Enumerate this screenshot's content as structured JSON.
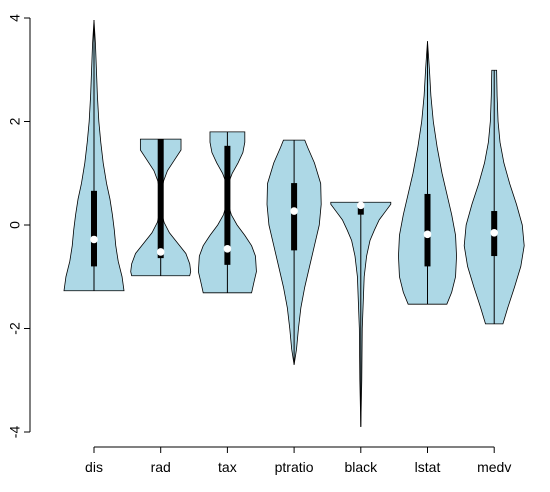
{
  "chart_data": {
    "type": "violin",
    "title": "",
    "xlabel": "",
    "ylabel": "",
    "ylim": [
      -4.2,
      4.2
    ],
    "yticks": [
      -4,
      -2,
      0,
      2,
      4
    ],
    "ytick_labels": [
      "-4",
      "-2",
      "0",
      "2",
      "4"
    ],
    "fill_color": "#add8e6",
    "categories": [
      "dis",
      "rad",
      "tax",
      "ptratio",
      "black",
      "lstat",
      "medv"
    ],
    "violins": [
      {
        "name": "dis",
        "min": -1.27,
        "max": 3.96,
        "q1": -0.8,
        "q3": 0.66,
        "median": -0.28,
        "density": [
          [
            -1.27,
            0.62
          ],
          [
            -1.0,
            0.58
          ],
          [
            -0.7,
            0.5
          ],
          [
            -0.4,
            0.45
          ],
          [
            -0.1,
            0.42
          ],
          [
            0.2,
            0.38
          ],
          [
            0.5,
            0.33
          ],
          [
            0.8,
            0.26
          ],
          [
            1.2,
            0.19
          ],
          [
            1.6,
            0.14
          ],
          [
            2.0,
            0.1
          ],
          [
            2.5,
            0.07
          ],
          [
            3.0,
            0.05
          ],
          [
            3.5,
            0.03
          ],
          [
            3.96,
            0.0
          ]
        ]
      },
      {
        "name": "rad",
        "min": -0.98,
        "max": 1.66,
        "q1": -0.64,
        "q3": 1.66,
        "median": -0.52,
        "density": [
          [
            -0.98,
            0.6
          ],
          [
            -0.9,
            0.62
          ],
          [
            -0.75,
            0.6
          ],
          [
            -0.55,
            0.52
          ],
          [
            -0.35,
            0.35
          ],
          [
            -0.15,
            0.18
          ],
          [
            0.05,
            0.07
          ],
          [
            0.25,
            0.02
          ],
          [
            0.45,
            0.01
          ],
          [
            0.65,
            0.02
          ],
          [
            0.85,
            0.06
          ],
          [
            1.05,
            0.14
          ],
          [
            1.25,
            0.28
          ],
          [
            1.45,
            0.42
          ],
          [
            1.66,
            0.42
          ]
        ]
      },
      {
        "name": "tax",
        "min": -1.31,
        "max": 1.8,
        "q1": -0.77,
        "q3": 1.53,
        "median": -0.46,
        "density": [
          [
            -1.31,
            0.5
          ],
          [
            -1.1,
            0.55
          ],
          [
            -0.9,
            0.6
          ],
          [
            -0.6,
            0.58
          ],
          [
            -0.4,
            0.5
          ],
          [
            -0.2,
            0.36
          ],
          [
            0.0,
            0.2
          ],
          [
            0.2,
            0.08
          ],
          [
            0.4,
            0.02
          ],
          [
            0.6,
            0.01
          ],
          [
            0.8,
            0.02
          ],
          [
            1.0,
            0.1
          ],
          [
            1.2,
            0.22
          ],
          [
            1.4,
            0.32
          ],
          [
            1.6,
            0.36
          ],
          [
            1.8,
            0.36
          ]
        ]
      },
      {
        "name": "ptratio",
        "min": -2.7,
        "max": 1.64,
        "q1": -0.49,
        "q3": 0.81,
        "median": 0.27,
        "density": [
          [
            -2.7,
            0.0
          ],
          [
            -2.4,
            0.05
          ],
          [
            -2.0,
            0.09
          ],
          [
            -1.6,
            0.14
          ],
          [
            -1.2,
            0.22
          ],
          [
            -0.8,
            0.32
          ],
          [
            -0.4,
            0.42
          ],
          [
            0.0,
            0.52
          ],
          [
            0.4,
            0.56
          ],
          [
            0.8,
            0.55
          ],
          [
            1.2,
            0.42
          ],
          [
            1.5,
            0.28
          ],
          [
            1.64,
            0.22
          ]
        ]
      },
      {
        "name": "black",
        "min": -3.9,
        "max": 0.44,
        "q1": 0.2,
        "q3": 0.44,
        "median": 0.38,
        "density": [
          [
            -3.9,
            0.0
          ],
          [
            -3.0,
            0.02
          ],
          [
            -2.0,
            0.03
          ],
          [
            -1.0,
            0.07
          ],
          [
            -0.6,
            0.12
          ],
          [
            -0.3,
            0.19
          ],
          [
            -0.1,
            0.28
          ],
          [
            0.1,
            0.38
          ],
          [
            0.25,
            0.5
          ],
          [
            0.4,
            0.62
          ],
          [
            0.44,
            0.62
          ]
        ]
      },
      {
        "name": "lstat",
        "min": -1.53,
        "max": 3.55,
        "q1": -0.8,
        "q3": 0.6,
        "median": -0.18,
        "density": [
          [
            -1.53,
            0.4
          ],
          [
            -1.3,
            0.5
          ],
          [
            -1.0,
            0.58
          ],
          [
            -0.6,
            0.6
          ],
          [
            -0.2,
            0.58
          ],
          [
            0.2,
            0.5
          ],
          [
            0.6,
            0.4
          ],
          [
            1.0,
            0.3
          ],
          [
            1.5,
            0.2
          ],
          [
            2.0,
            0.12
          ],
          [
            2.5,
            0.07
          ],
          [
            3.0,
            0.04
          ],
          [
            3.55,
            0.0
          ]
        ]
      },
      {
        "name": "medv",
        "min": -1.91,
        "max": 2.99,
        "q1": -0.6,
        "q3": 0.27,
        "median": -0.15,
        "density": [
          [
            -1.91,
            0.18
          ],
          [
            -1.6,
            0.28
          ],
          [
            -1.2,
            0.42
          ],
          [
            -0.8,
            0.55
          ],
          [
            -0.4,
            0.62
          ],
          [
            0.0,
            0.58
          ],
          [
            0.4,
            0.46
          ],
          [
            0.8,
            0.32
          ],
          [
            1.2,
            0.2
          ],
          [
            1.6,
            0.12
          ],
          [
            2.0,
            0.08
          ],
          [
            2.5,
            0.06
          ],
          [
            2.99,
            0.05
          ]
        ]
      }
    ]
  }
}
